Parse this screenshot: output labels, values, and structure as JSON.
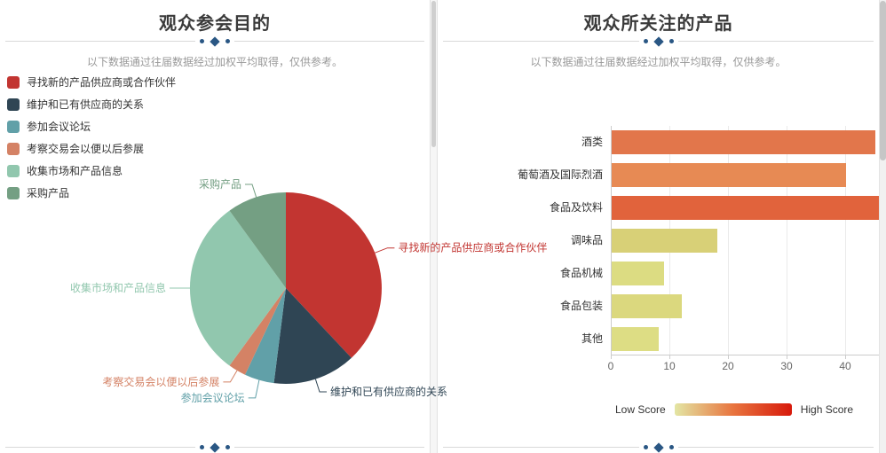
{
  "accent_color": "#2a5784",
  "panels": {
    "left": {
      "title": "观众参会目的",
      "subtitle": "以下数据通过往届数据经过加权平均取得，仅供参考。"
    },
    "right": {
      "title": "观众所关注的产品",
      "subtitle": "以下数据通过往届数据经过加权平均取得，仅供参考。"
    }
  },
  "chart_data": [
    {
      "type": "pie",
      "title": "观众参会目的",
      "legend_position": "top-left",
      "series": [
        {
          "name": "寻找新的产品供应商或合作伙伴",
          "value": 38,
          "color": "#c23531"
        },
        {
          "name": "维护和已有供应商的关系",
          "value": 14,
          "color": "#2f4554"
        },
        {
          "name": "参加会议论坛",
          "value": 5,
          "color": "#61a0a8"
        },
        {
          "name": "考察交易会以便以后参展",
          "value": 3,
          "color": "#d48265"
        },
        {
          "name": "收集市场和产品信息",
          "value": 30,
          "color": "#91c7ae"
        },
        {
          "name": "采购产品",
          "value": 10,
          "color": "#749f83"
        }
      ]
    },
    {
      "type": "bar",
      "orientation": "horizontal",
      "title": "观众所关注的产品",
      "categories": [
        "酒类",
        "葡萄酒及国际烈酒",
        "食品及饮料",
        "调味品",
        "食品机械",
        "食品包装",
        "其他"
      ],
      "values": [
        45,
        40,
        47,
        18,
        9,
        12,
        8
      ],
      "bar_colors": [
        "#e2764b",
        "#e78a54",
        "#e1633c",
        "#d8d077",
        "#dcdc82",
        "#dbd87e",
        "#dddd84"
      ],
      "xlim": [
        0,
        45
      ],
      "x_ticks": [
        0,
        10,
        20,
        30,
        40
      ],
      "visual_map": {
        "low_label": "Low Score",
        "high_label": "High Score",
        "low_color": "#e3e6a4",
        "mid_color": "#e8743e",
        "high_color": "#d7190b"
      }
    }
  ]
}
